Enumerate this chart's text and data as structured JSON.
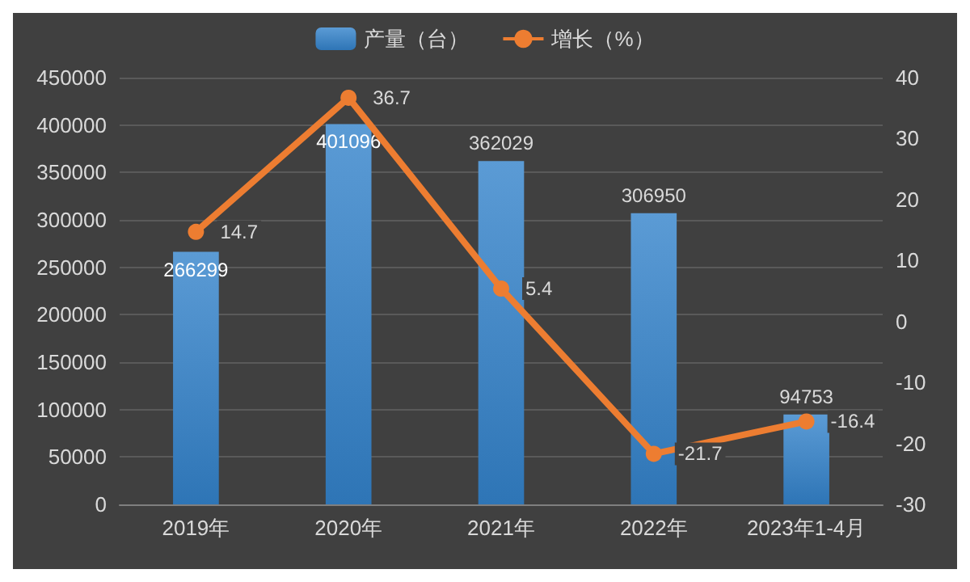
{
  "chart_data": {
    "type": "bar",
    "categories": [
      "2019年",
      "2020年",
      "2021年",
      "2022年",
      "2023年1-4月"
    ],
    "series": [
      {
        "name": "产量（台）",
        "color": "#5b9bd5",
        "values": [
          266299,
          401096,
          362029,
          306950,
          94753
        ]
      },
      {
        "name": "增长（%）",
        "type": "line",
        "axis": "y2",
        "color": "#ed7d31",
        "values": [
          14.7,
          36.7,
          5.4,
          -21.7,
          -16.4
        ]
      }
    ],
    "ylim": [
      0,
      450000
    ],
    "yticks": [
      0,
      50000,
      100000,
      150000,
      200000,
      250000,
      300000,
      350000,
      400000,
      450000
    ],
    "y2lim": [
      -30,
      40
    ],
    "y2ticks": [
      -30,
      -20,
      -10,
      0,
      10,
      20,
      30,
      40
    ],
    "data_labels": true,
    "grid": "y",
    "legend": "top",
    "marker": "circle",
    "line_style": "solid"
  }
}
